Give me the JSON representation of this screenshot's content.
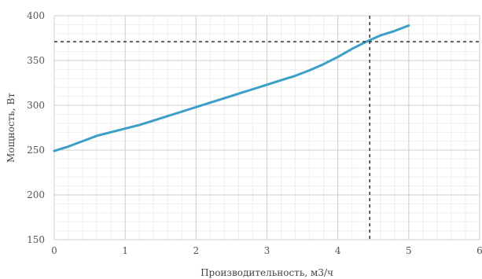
{
  "chart_data": {
    "type": "line",
    "xlabel": "Производительность, м3/ч",
    "ylabel": "Мощность, Вт",
    "xlim": [
      0,
      6
    ],
    "ylim": [
      150,
      400
    ],
    "x_ticks": [
      0,
      1,
      2,
      3,
      4,
      5,
      6
    ],
    "y_ticks": [
      150,
      200,
      250,
      300,
      350,
      400
    ],
    "minor_x_step": 0.2,
    "minor_y_step": 10,
    "grid": true,
    "series": [
      {
        "color": "#3d9ec8",
        "x": [
          0,
          0.2,
          0.4,
          0.6,
          0.8,
          1.0,
          1.2,
          1.4,
          1.6,
          1.8,
          2.0,
          2.2,
          2.4,
          2.6,
          2.8,
          3.0,
          3.2,
          3.4,
          3.6,
          3.8,
          4.0,
          4.2,
          4.4,
          4.6,
          4.8,
          5.0
        ],
        "y": [
          249,
          254,
          260,
          266,
          270,
          274,
          278,
          283,
          288,
          293,
          298,
          303,
          308,
          313,
          318,
          323,
          328,
          333,
          339,
          346,
          354,
          363,
          371,
          378,
          383,
          389
        ]
      }
    ],
    "reference_lines": {
      "x": 4.45,
      "y": 371,
      "color": "#333333"
    }
  }
}
